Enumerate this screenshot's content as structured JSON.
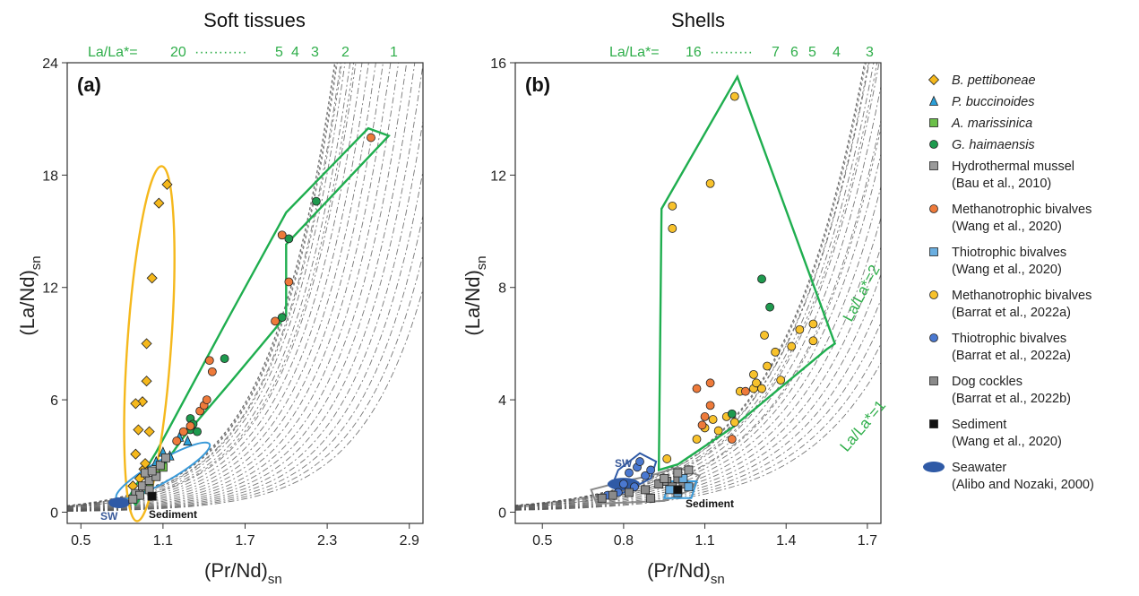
{
  "panels": [
    {
      "id": "a",
      "title": "Soft tissues",
      "panel_label": "(a)",
      "xlabel_main": "(Pr/Nd)",
      "xlabel_sub": "sn",
      "ylabel_main": "(La/Nd)",
      "ylabel_sub": "sn",
      "xlim": [
        0.4,
        3.0
      ],
      "ylim": [
        -0.6,
        24
      ],
      "xticks": [
        "0.5",
        "1.1",
        "1.7",
        "2.3",
        "2.9"
      ],
      "yticks": [
        "0",
        "6",
        "12",
        "18",
        "24"
      ],
      "lala_header": "La/La*=",
      "lala_labels": [
        "20",
        "5",
        "4",
        "3",
        "2",
        "1"
      ],
      "annotation_sediment": "Sediment",
      "annotation_sw": "SW"
    },
    {
      "id": "b",
      "title": "Shells",
      "panel_label": "(b)",
      "xlabel_main": "(Pr/Nd)",
      "xlabel_sub": "sn",
      "ylabel_main": "(La/Nd)",
      "ylabel_sub": "sn",
      "xlim": [
        0.4,
        1.75
      ],
      "ylim": [
        -0.4,
        16
      ],
      "xticks": [
        "0.5",
        "0.8",
        "1.1",
        "1.4",
        "1.7"
      ],
      "yticks": [
        "0",
        "4",
        "8",
        "12",
        "16"
      ],
      "lala_header": "La/La*=",
      "lala_labels": [
        "16",
        "7",
        "6",
        "5",
        "4",
        "3"
      ],
      "curve_label_2": "La/La*=2",
      "curve_label_1": "La/La*=1",
      "annotation_sediment": "Sediment",
      "annotation_sw": "SW"
    }
  ],
  "legend": [
    {
      "name": "B. pettiboneae",
      "italic": true,
      "shape": "diamond",
      "color": "#f5b81c"
    },
    {
      "name": "P. buccinoides",
      "italic": true,
      "shape": "triangle",
      "color": "#2a9fd8"
    },
    {
      "name": "A. marissinica",
      "italic": true,
      "shape": "square",
      "color": "#6cc04a"
    },
    {
      "name": "G. haimaensis",
      "italic": true,
      "shape": "circle",
      "color": "#1e9a4e"
    },
    {
      "name": "Hydrothermal mussel",
      "ref": "(Bau et al., 2010)",
      "shape": "square",
      "color": "#9a9a9a"
    },
    {
      "name": "Methanotrophic bivalves",
      "ref": "(Wang et al., 2020)",
      "shape": "circle",
      "color": "#ee7a3a"
    },
    {
      "name": "Thiotrophic bivalves",
      "ref": "(Wang et al., 2020)",
      "shape": "square",
      "color": "#6aaee0"
    },
    {
      "name": "Methanotrophic bivalves",
      "ref": "(Barrat et al., 2022a)",
      "shape": "circle",
      "color": "#f8c22c"
    },
    {
      "name": "Thiotrophic bivalves",
      "ref": "(Barrat et al., 2022a)",
      "shape": "circle",
      "color": "#4a78d0"
    },
    {
      "name": "Dog cockles",
      "ref": "(Barrat et al., 2022b)",
      "shape": "square",
      "color": "#8a8a8a"
    },
    {
      "name": "Sediment",
      "ref": "(Wang et al., 2020)",
      "shape": "square",
      "color": "#111111"
    },
    {
      "name": "Seawater",
      "ref": "(Alibo and Nozaki, 2000)",
      "shape": "ellipse",
      "color": "#2f5aa6"
    }
  ],
  "colors": {
    "green_envelope": "#1fae4f",
    "orange_envelope": "#f5b81c",
    "blue_envelope": "#3a9ad9",
    "curve": "#555555"
  },
  "chart_data": [
    {
      "type": "scatter",
      "title": "Soft tissues",
      "xlabel": "(Pr/Nd)sn",
      "ylabel": "(La/Nd)sn",
      "xlim": [
        0.4,
        3.0
      ],
      "ylim": [
        -0.6,
        24
      ],
      "series": [
        {
          "name": "B. pettiboneae",
          "points": [
            [
              0.95,
              5.9
            ],
            [
              0.9,
              5.8
            ],
            [
              0.98,
              7.0
            ],
            [
              1.0,
              4.3
            ],
            [
              0.92,
              4.4
            ],
            [
              0.98,
              9.0
            ],
            [
              1.02,
              12.5
            ],
            [
              1.07,
              16.5
            ],
            [
              1.13,
              17.5
            ],
            [
              0.9,
              3.1
            ],
            [
              0.96,
              2.3
            ],
            [
              0.97,
              2.6
            ],
            [
              0.93,
              1.8
            ],
            [
              0.88,
              1.4
            ]
          ]
        },
        {
          "name": "P. buccinoides",
          "points": [
            [
              1.05,
              2.7
            ],
            [
              1.1,
              3.2
            ],
            [
              1.15,
              3.0
            ],
            [
              1.22,
              4.0
            ],
            [
              1.28,
              3.8
            ]
          ]
        },
        {
          "name": "A. marissinica",
          "points": [
            [
              1.0,
              1.6
            ],
            [
              1.05,
              2.0
            ],
            [
              1.1,
              2.4
            ]
          ]
        },
        {
          "name": "G. haimaensis",
          "points": [
            [
              1.3,
              5.0
            ],
            [
              1.32,
              4.7
            ],
            [
              1.3,
              4.4
            ],
            [
              1.35,
              4.3
            ],
            [
              1.55,
              8.2
            ],
            [
              1.97,
              10.4
            ],
            [
              2.02,
              14.6
            ],
            [
              2.22,
              16.6
            ]
          ]
        },
        {
          "name": "Hydrothermal mussel",
          "points": [
            [
              0.9,
              1.0
            ],
            [
              0.95,
              1.4
            ],
            [
              1.0,
              1.7
            ],
            [
              1.05,
              1.9
            ],
            [
              0.93,
              0.9
            ],
            [
              1.0,
              1.2
            ],
            [
              0.97,
              2.1
            ],
            [
              1.02,
              2.2
            ],
            [
              1.08,
              2.5
            ],
            [
              0.88,
              0.7
            ],
            [
              1.12,
              2.9
            ]
          ]
        },
        {
          "name": "Methanotrophic bivalves",
          "points": [
            [
              1.44,
              8.1
            ],
            [
              1.46,
              7.5
            ],
            [
              1.37,
              5.4
            ],
            [
              1.4,
              5.7
            ],
            [
              1.42,
              6.0
            ],
            [
              1.25,
              4.3
            ],
            [
              1.3,
              4.6
            ],
            [
              1.2,
              3.8
            ],
            [
              1.92,
              10.2
            ],
            [
              1.97,
              14.8
            ],
            [
              2.02,
              12.3
            ],
            [
              2.62,
              20.0
            ]
          ]
        },
        {
          "name": "Sediment",
          "points": [
            [
              1.02,
              0.85
            ]
          ]
        }
      ]
    },
    {
      "type": "scatter",
      "title": "Shells",
      "xlabel": "(Pr/Nd)sn",
      "ylabel": "(La/Nd)sn",
      "xlim": [
        0.4,
        1.75
      ],
      "ylim": [
        -0.4,
        16
      ],
      "series": [
        {
          "name": "Methanotrophic bivalves (Barrat et al., 2022a)",
          "points": [
            [
              0.98,
              10.9
            ],
            [
              0.98,
              10.1
            ],
            [
              1.12,
              11.7
            ],
            [
              1.21,
              14.8
            ],
            [
              0.96,
              1.9
            ],
            [
              1.13,
              3.3
            ],
            [
              1.15,
              2.9
            ],
            [
              1.18,
              3.4
            ],
            [
              1.21,
              3.2
            ],
            [
              1.23,
              4.3
            ],
            [
              1.28,
              4.4
            ],
            [
              1.29,
              4.6
            ],
            [
              1.31,
              4.4
            ],
            [
              1.32,
              6.3
            ],
            [
              1.33,
              5.2
            ],
            [
              1.36,
              5.7
            ],
            [
              1.38,
              4.7
            ],
            [
              1.42,
              5.9
            ],
            [
              1.45,
              6.5
            ],
            [
              1.5,
              6.7
            ],
            [
              1.5,
              6.1
            ],
            [
              1.28,
              4.9
            ],
            [
              1.1,
              3.0
            ],
            [
              1.07,
              2.6
            ]
          ]
        },
        {
          "name": "Methanotrophic bivalves (Wang et al., 2020)",
          "points": [
            [
              1.07,
              4.4
            ],
            [
              1.09,
              3.1
            ],
            [
              1.1,
              3.4
            ],
            [
              1.12,
              4.6
            ],
            [
              1.25,
              4.3
            ],
            [
              1.2,
              2.6
            ],
            [
              1.12,
              3.8
            ]
          ]
        },
        {
          "name": "G. haimaensis",
          "points": [
            [
              1.31,
              8.3
            ],
            [
              1.34,
              7.3
            ],
            [
              1.2,
              3.5
            ]
          ]
        },
        {
          "name": "Thiotrophic bivalves (Barrat et al., 2022a)",
          "points": [
            [
              0.85,
              1.6
            ],
            [
              0.82,
              1.4
            ],
            [
              0.88,
              1.3
            ],
            [
              0.84,
              0.9
            ],
            [
              0.8,
              1.0
            ],
            [
              0.78,
              0.7
            ],
            [
              0.74,
              0.6
            ],
            [
              0.86,
              1.8
            ],
            [
              0.9,
              1.5
            ]
          ]
        },
        {
          "name": "Dog cockles",
          "points": [
            [
              0.72,
              0.5
            ],
            [
              0.76,
              0.6
            ],
            [
              0.82,
              0.7
            ],
            [
              0.88,
              0.8
            ],
            [
              0.93,
              1.0
            ],
            [
              0.96,
              1.1
            ],
            [
              1.0,
              1.2
            ],
            [
              1.02,
              1.0
            ],
            [
              0.98,
              0.9
            ],
            [
              0.9,
              0.5
            ]
          ]
        },
        {
          "name": "Thiotrophic bivalves (Wang et al., 2020)",
          "points": [
            [
              0.97,
              0.8
            ],
            [
              1.0,
              0.7
            ],
            [
              1.04,
              0.9
            ],
            [
              1.02,
              1.2
            ]
          ]
        },
        {
          "name": "Hydrothermal mussel",
          "points": [
            [
              0.95,
              1.2
            ],
            [
              1.0,
              1.4
            ],
            [
              1.04,
              1.5
            ]
          ]
        },
        {
          "name": "Sediment",
          "points": [
            [
              1.0,
              0.8
            ]
          ]
        }
      ]
    }
  ]
}
